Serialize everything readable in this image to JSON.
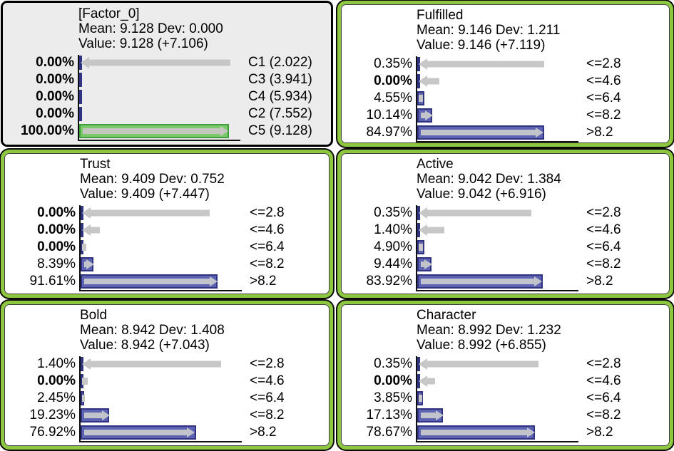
{
  "colors": {
    "panel_border_green": "#8dc63f",
    "panel_outline_black": "#0b0b0b",
    "evidence_panel_bg": "#ececec",
    "bar_blue_fill": "#5d63b2",
    "bar_blue_border": "#303480",
    "bar_green_fill": "#7bc96a",
    "bar_green_border": "#3f9e3c",
    "change_arrow_gray": "#c7c7c7",
    "axis_line": "#101010",
    "text": "#000000"
  },
  "chart_data": [
    {
      "type": "bar",
      "title": "[Factor_0]",
      "mean_line": "Mean: 9.128 Dev: 0.000",
      "value_line": "Value: 9.128 (+7.106)",
      "mean": 9.128,
      "dev": 0.0,
      "value": 9.128,
      "value_delta": "+7.106",
      "panel_style": "evidence-gray",
      "xlim_percent": [
        0,
        100
      ],
      "rows": [
        {
          "pct": "0.00%",
          "value": 0.0,
          "bold": true,
          "state": "C1 (2.022)",
          "arrow": "left",
          "arrow_pct": 100
        },
        {
          "pct": "0.00%",
          "value": 0.0,
          "bold": true,
          "state": "C3 (3.941)",
          "arrow": "none",
          "arrow_pct": 0
        },
        {
          "pct": "0.00%",
          "value": 0.0,
          "bold": true,
          "state": "C4 (5.934)",
          "arrow": "none",
          "arrow_pct": 0
        },
        {
          "pct": "0.00%",
          "value": 0.0,
          "bold": true,
          "state": "C2 (7.552)",
          "arrow": "none",
          "arrow_pct": 0
        },
        {
          "pct": "100.00%",
          "value": 100.0,
          "bold": true,
          "state": "C5 (9.128)",
          "arrow": "right",
          "arrow_pct": 97,
          "bar_color": "green"
        }
      ]
    },
    {
      "type": "bar",
      "title": "Fulfilled",
      "mean_line": "Mean: 9.146 Dev: 1.211",
      "value_line": "Value: 9.146 (+7.119)",
      "mean": 9.146,
      "dev": 1.211,
      "value": 9.146,
      "value_delta": "+7.119",
      "panel_style": "green-border",
      "xlim_percent": [
        0,
        100
      ],
      "rows": [
        {
          "pct": "0.35%",
          "value": 0.35,
          "bold": false,
          "state": "<=2.8",
          "arrow": "left",
          "arrow_pct": 84
        },
        {
          "pct": "0.00%",
          "value": 0.0,
          "bold": true,
          "state": "<=4.6",
          "arrow": "left",
          "arrow_pct": 14
        },
        {
          "pct": "4.55%",
          "value": 4.55,
          "bold": false,
          "state": "<=6.4",
          "arrow": "stub",
          "arrow_pct": 3
        },
        {
          "pct": "10.14%",
          "value": 10.14,
          "bold": false,
          "state": "<=8.2",
          "arrow": "right",
          "arrow_pct": 9
        },
        {
          "pct": "84.97%",
          "value": 84.97,
          "bold": false,
          "state": ">8.2",
          "arrow": "right",
          "arrow_pct": 82
        }
      ]
    },
    {
      "type": "bar",
      "title": "Trust",
      "mean_line": "Mean: 9.409 Dev: 0.752",
      "value_line": "Value: 9.409 (+7.447)",
      "mean": 9.409,
      "dev": 0.752,
      "value": 9.409,
      "value_delta": "+7.447",
      "panel_style": "green-border",
      "xlim_percent": [
        0,
        100
      ],
      "rows": [
        {
          "pct": "0.00%",
          "value": 0.0,
          "bold": true,
          "state": "<=2.8",
          "arrow": "left",
          "arrow_pct": 85
        },
        {
          "pct": "0.00%",
          "value": 0.0,
          "bold": true,
          "state": "<=4.6",
          "arrow": "left",
          "arrow_pct": 12
        },
        {
          "pct": "0.00%",
          "value": 0.0,
          "bold": true,
          "state": "<=6.4",
          "arrow": "stub",
          "arrow_pct": 3
        },
        {
          "pct": "8.39%",
          "value": 8.39,
          "bold": false,
          "state": "<=8.2",
          "arrow": "right",
          "arrow_pct": 7
        },
        {
          "pct": "91.61%",
          "value": 91.61,
          "bold": false,
          "state": ">8.2",
          "arrow": "right",
          "arrow_pct": 89
        }
      ]
    },
    {
      "type": "bar",
      "title": "Active",
      "mean_line": "Mean: 9.042 Dev: 1.384",
      "value_line": "Value: 9.042 (+6.916)",
      "mean": 9.042,
      "dev": 1.384,
      "value": 9.042,
      "value_delta": "+6.916",
      "panel_style": "green-border",
      "xlim_percent": [
        0,
        100
      ],
      "rows": [
        {
          "pct": "0.35%",
          "value": 0.35,
          "bold": false,
          "state": "<=2.8",
          "arrow": "left",
          "arrow_pct": 75
        },
        {
          "pct": "1.40%",
          "value": 1.4,
          "bold": false,
          "state": "<=4.6",
          "arrow": "left",
          "arrow_pct": 17
        },
        {
          "pct": "4.90%",
          "value": 4.9,
          "bold": false,
          "state": "<=6.4",
          "arrow": "stub",
          "arrow_pct": 3
        },
        {
          "pct": "9.44%",
          "value": 9.44,
          "bold": false,
          "state": "<=8.2",
          "arrow": "right",
          "arrow_pct": 7.5
        },
        {
          "pct": "83.92%",
          "value": 83.92,
          "bold": false,
          "state": ">8.2",
          "arrow": "right",
          "arrow_pct": 81
        }
      ]
    },
    {
      "type": "bar",
      "title": "Bold",
      "mean_line": "Mean: 8.942 Dev: 1.408",
      "value_line": "Value: 8.942 (+7.043)",
      "mean": 8.942,
      "dev": 1.408,
      "value": 8.942,
      "value_delta": "+7.043",
      "panel_style": "green-border",
      "xlim_percent": [
        0,
        100
      ],
      "rows": [
        {
          "pct": "1.40%",
          "value": 1.4,
          "bold": false,
          "state": "<=2.8",
          "arrow": "left",
          "arrow_pct": 93
        },
        {
          "pct": "0.00%",
          "value": 0.0,
          "bold": true,
          "state": "<=4.6",
          "arrow": "stub",
          "arrow_pct": 4
        },
        {
          "pct": "2.45%",
          "value": 2.45,
          "bold": false,
          "state": "<=6.4",
          "arrow": "stub",
          "arrow_pct": 2
        },
        {
          "pct": "19.23%",
          "value": 19.23,
          "bold": false,
          "state": "<=8.2",
          "arrow": "right",
          "arrow_pct": 17
        },
        {
          "pct": "76.92%",
          "value": 76.92,
          "bold": false,
          "state": ">8.2",
          "arrow": "right",
          "arrow_pct": 74
        }
      ]
    },
    {
      "type": "bar",
      "title": "Character",
      "mean_line": "Mean: 8.992 Dev: 1.232",
      "value_line": "Value: 8.992 (+6.855)",
      "mean": 8.992,
      "dev": 1.232,
      "value": 8.992,
      "value_delta": "+6.855",
      "panel_style": "green-border",
      "xlim_percent": [
        0,
        100
      ],
      "rows": [
        {
          "pct": "0.35%",
          "value": 0.35,
          "bold": false,
          "state": "<=2.8",
          "arrow": "left",
          "arrow_pct": 80
        },
        {
          "pct": "0.00%",
          "value": 0.0,
          "bold": true,
          "state": "<=4.6",
          "arrow": "left",
          "arrow_pct": 11
        },
        {
          "pct": "3.85%",
          "value": 3.85,
          "bold": false,
          "state": "<=6.4",
          "arrow": "stub",
          "arrow_pct": 2.5
        },
        {
          "pct": "17.13%",
          "value": 17.13,
          "bold": false,
          "state": "<=8.2",
          "arrow": "right",
          "arrow_pct": 15
        },
        {
          "pct": "78.67%",
          "value": 78.67,
          "bold": false,
          "state": ">8.2",
          "arrow": "right",
          "arrow_pct": 76
        }
      ]
    }
  ]
}
